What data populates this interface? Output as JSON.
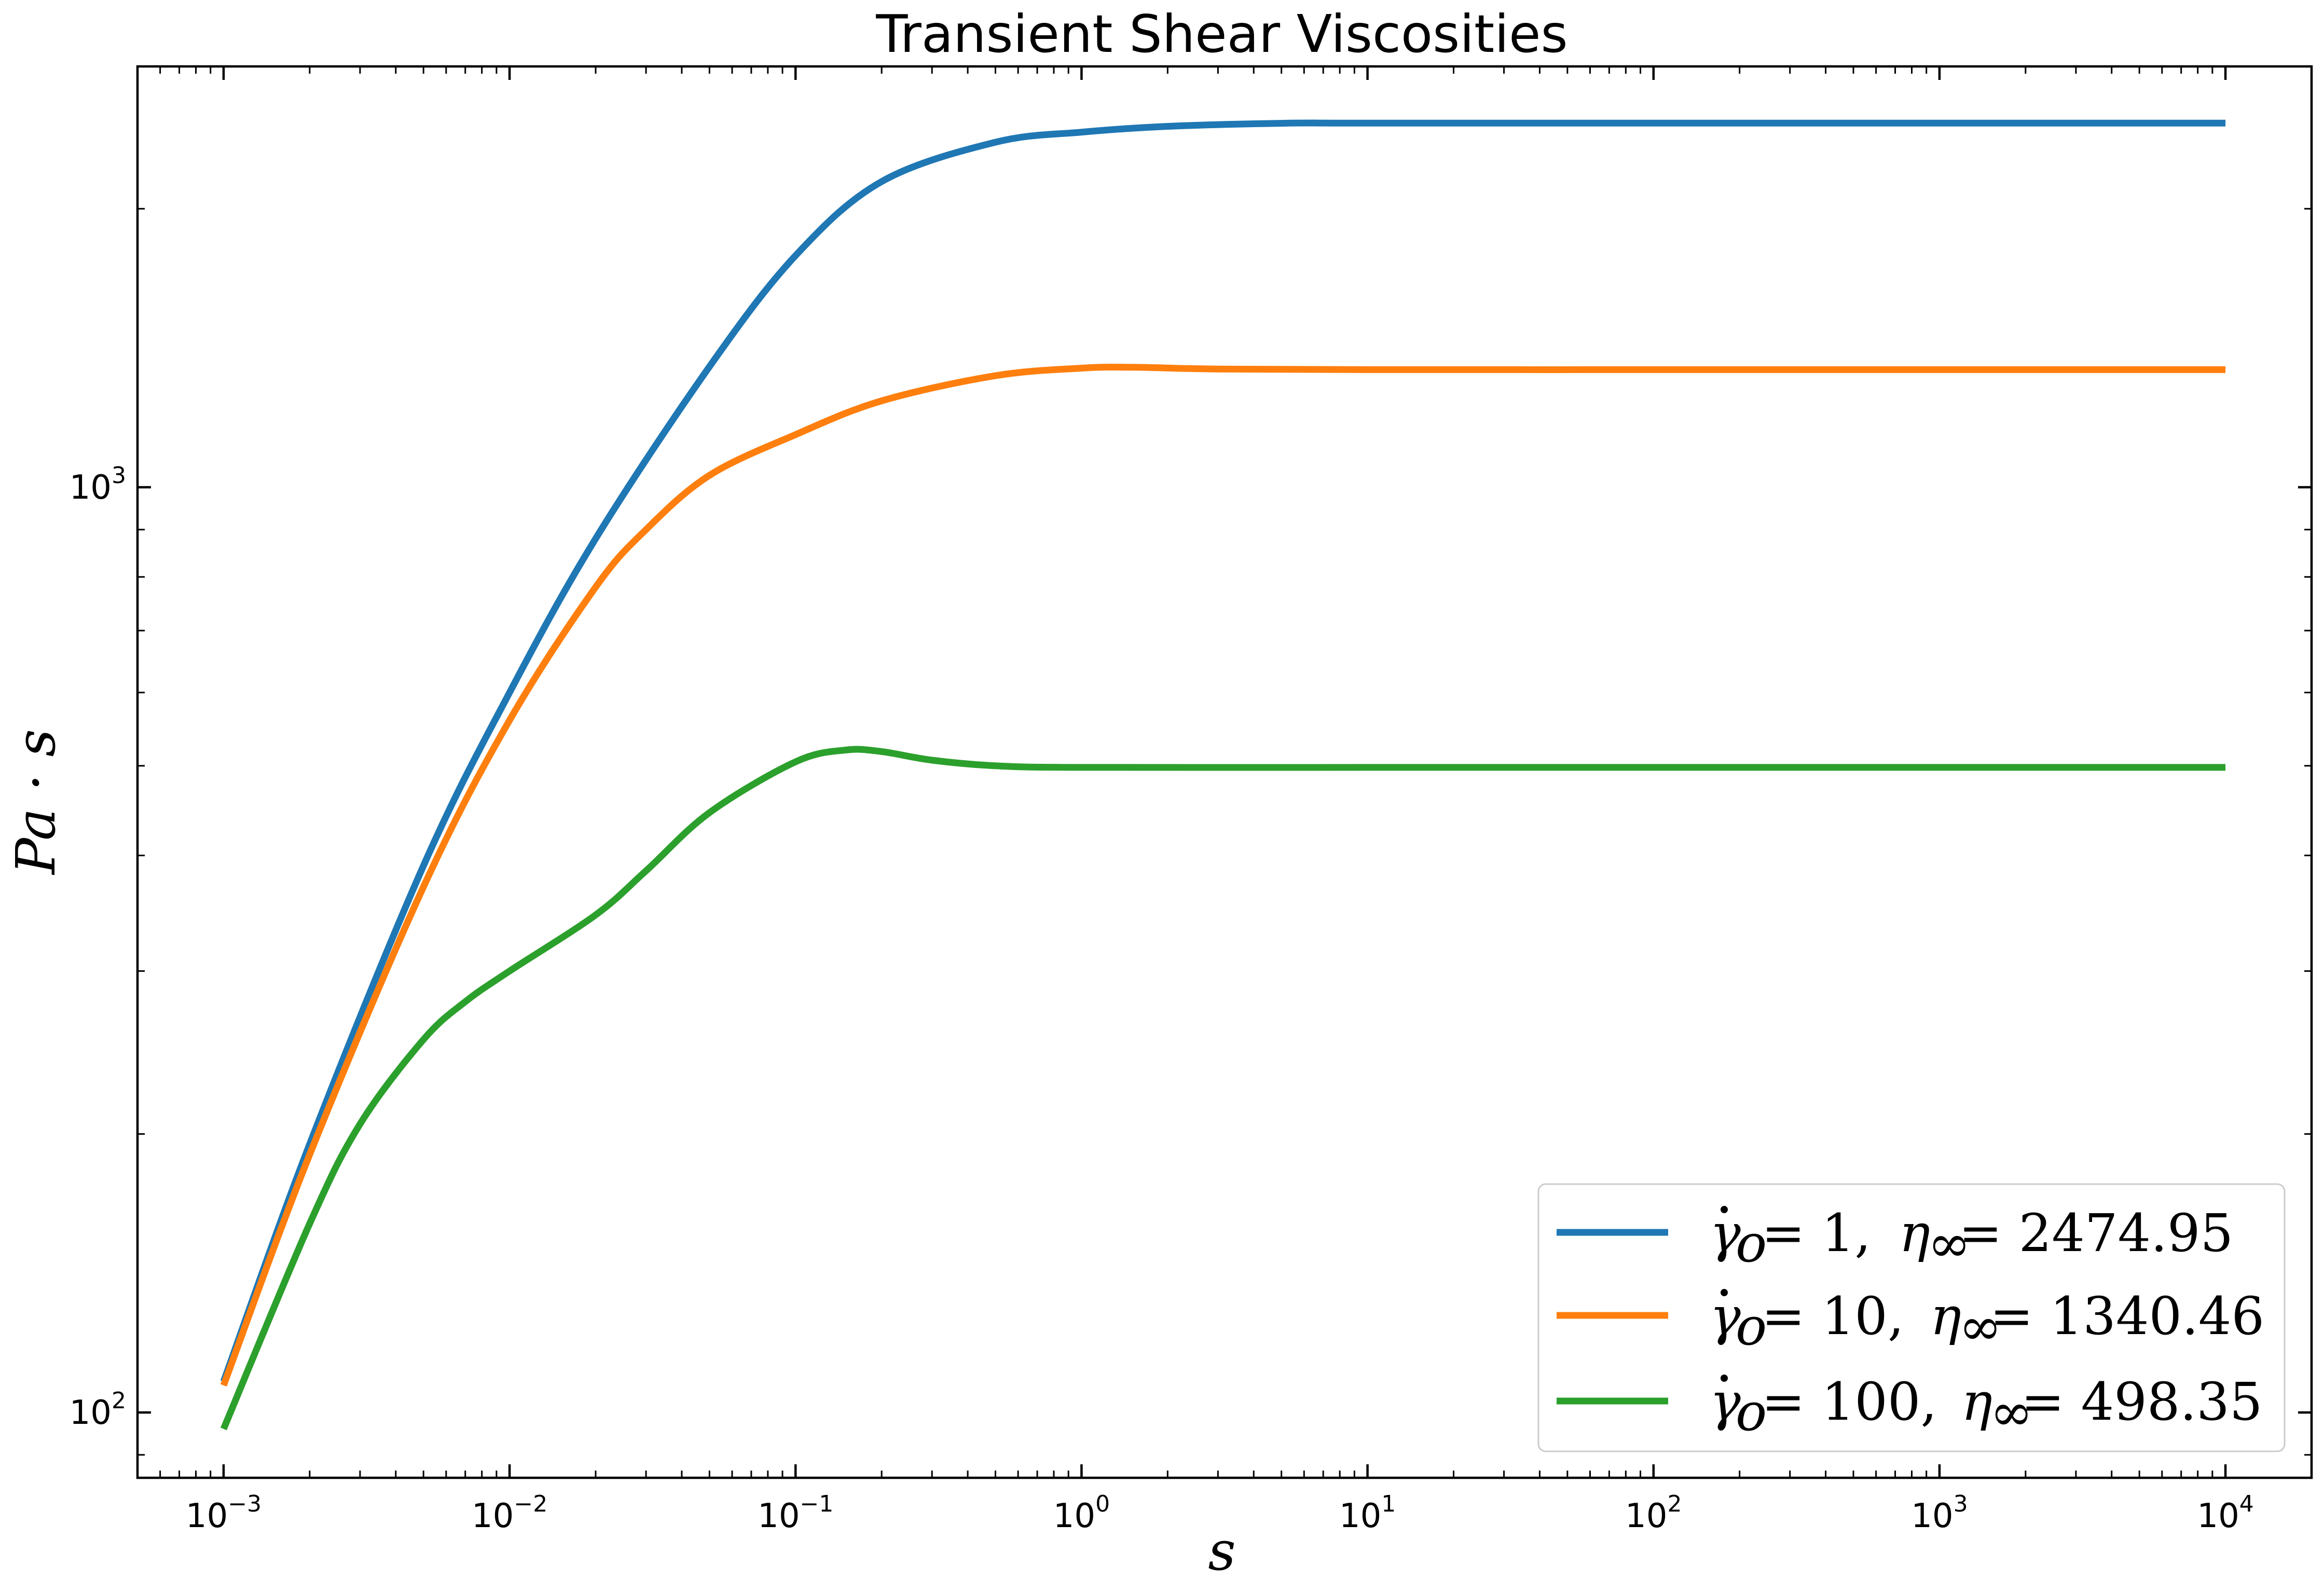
{
  "chart_data": {
    "type": "line",
    "title": "Transient Shear Viscosities",
    "xlabel": "s",
    "ylabel": "Pa · s",
    "xscale": "log",
    "yscale": "log",
    "xlim": [
      0.0005,
      20000
    ],
    "ylim": [
      85,
      2850
    ],
    "grid": false,
    "legend_position": "bottom-right",
    "x_ticks": [
      {
        "value": 0.001,
        "base": "10",
        "exp": "−3"
      },
      {
        "value": 0.01,
        "base": "10",
        "exp": "−2"
      },
      {
        "value": 0.1,
        "base": "10",
        "exp": "−1"
      },
      {
        "value": 1,
        "base": "10",
        "exp": "0"
      },
      {
        "value": 10,
        "base": "10",
        "exp": "1"
      },
      {
        "value": 100,
        "base": "10",
        "exp": "2"
      },
      {
        "value": 1000,
        "base": "10",
        "exp": "3"
      },
      {
        "value": 10000,
        "base": "10",
        "exp": "4"
      }
    ],
    "y_ticks": [
      {
        "value": 100,
        "base": "10",
        "exp": "2"
      },
      {
        "value": 1000,
        "base": "10",
        "exp": "3"
      }
    ],
    "series": [
      {
        "name": "γ̇o = 1, η∞ = 2474.95",
        "legend_rate": "1",
        "legend_eta": "2474.95",
        "color": "#1f77b4",
        "x": [
          0.001,
          0.002,
          0.005,
          0.01,
          0.02,
          0.05,
          0.1,
          0.2,
          0.5,
          1,
          2,
          5,
          10,
          100,
          1000,
          10000
        ],
        "y": [
          108,
          195,
          390,
          600,
          880,
          1350,
          1780,
          2140,
          2360,
          2420,
          2455,
          2474,
          2475,
          2475,
          2475,
          2475
        ]
      },
      {
        "name": "γ̇o = 10, η∞ = 1340.46",
        "legend_rate": "10",
        "legend_eta": "1340.46",
        "color": "#ff7f0e",
        "x": [
          0.001,
          0.002,
          0.005,
          0.01,
          0.02,
          0.03,
          0.05,
          0.1,
          0.2,
          0.5,
          1,
          1.5,
          3,
          10,
          100,
          1000,
          10000
        ],
        "y": [
          107,
          190,
          370,
          560,
          780,
          900,
          1030,
          1140,
          1240,
          1320,
          1345,
          1348,
          1342,
          1340,
          1340,
          1340,
          1340
        ]
      },
      {
        "name": "γ̇o = 100, η∞ = 498.35",
        "legend_rate": "100",
        "legend_eta": "498.35",
        "color": "#2ca02c",
        "x": [
          0.001,
          0.002,
          0.003,
          0.005,
          0.007,
          0.01,
          0.02,
          0.03,
          0.05,
          0.1,
          0.15,
          0.2,
          0.3,
          0.5,
          1,
          10,
          100,
          1000,
          10000
        ],
        "y": [
          96,
          160,
          205,
          253,
          278,
          300,
          345,
          385,
          445,
          505,
          520,
          518,
          507,
          500,
          498,
          498,
          498,
          498,
          498
        ]
      }
    ]
  }
}
